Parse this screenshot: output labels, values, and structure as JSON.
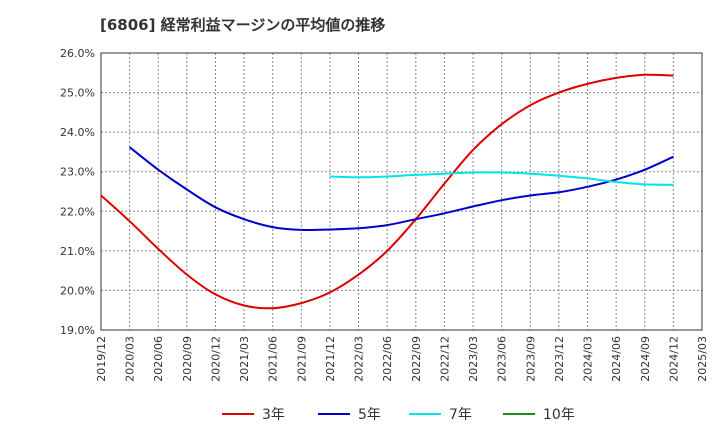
{
  "chart_data": {
    "type": "line",
    "title": "[6806]  経常利益マージンの平均値の推移",
    "xlabel": "",
    "ylabel": "",
    "ylim": [
      19.0,
      26.0
    ],
    "yticks": [
      "19.0%",
      "20.0%",
      "21.0%",
      "22.0%",
      "23.0%",
      "24.0%",
      "25.0%",
      "26.0%"
    ],
    "x_ticks": [
      "2019/12",
      "2020/03",
      "2020/06",
      "2020/09",
      "2020/12",
      "2021/03",
      "2021/06",
      "2021/09",
      "2021/12",
      "2022/03",
      "2022/06",
      "2022/09",
      "2022/12",
      "2023/03",
      "2023/06",
      "2023/09",
      "2023/12",
      "2024/03",
      "2024/06",
      "2024/09",
      "2024/12",
      "2025/03"
    ],
    "grid": true,
    "legend_position": "bottom",
    "series": [
      {
        "name": "3年",
        "color": "#dd0000",
        "points": [
          {
            "x": "2019/12",
            "y": 22.4
          },
          {
            "x": "2020/03",
            "y": 21.75
          },
          {
            "x": "2020/06",
            "y": 21.05
          },
          {
            "x": "2020/09",
            "y": 20.4
          },
          {
            "x": "2020/12",
            "y": 19.9
          },
          {
            "x": "2021/03",
            "y": 19.62
          },
          {
            "x": "2021/06",
            "y": 19.55
          },
          {
            "x": "2021/09",
            "y": 19.68
          },
          {
            "x": "2021/12",
            "y": 19.95
          },
          {
            "x": "2022/03",
            "y": 20.4
          },
          {
            "x": "2022/06",
            "y": 21.0
          },
          {
            "x": "2022/09",
            "y": 21.8
          },
          {
            "x": "2022/12",
            "y": 22.7
          },
          {
            "x": "2023/03",
            "y": 23.55
          },
          {
            "x": "2023/06",
            "y": 24.2
          },
          {
            "x": "2023/09",
            "y": 24.68
          },
          {
            "x": "2023/12",
            "y": 25.0
          },
          {
            "x": "2024/03",
            "y": 25.22
          },
          {
            "x": "2024/06",
            "y": 25.37
          },
          {
            "x": "2024/09",
            "y": 25.45
          },
          {
            "x": "2024/12",
            "y": 25.43
          }
        ]
      },
      {
        "name": "5年",
        "color": "#0000cc",
        "points": [
          {
            "x": "2020/03",
            "y": 23.62
          },
          {
            "x": "2020/06",
            "y": 23.05
          },
          {
            "x": "2020/09",
            "y": 22.55
          },
          {
            "x": "2020/12",
            "y": 22.1
          },
          {
            "x": "2021/03",
            "y": 21.8
          },
          {
            "x": "2021/06",
            "y": 21.6
          },
          {
            "x": "2021/09",
            "y": 21.53
          },
          {
            "x": "2021/12",
            "y": 21.54
          },
          {
            "x": "2022/03",
            "y": 21.57
          },
          {
            "x": "2022/06",
            "y": 21.65
          },
          {
            "x": "2022/09",
            "y": 21.8
          },
          {
            "x": "2022/12",
            "y": 21.95
          },
          {
            "x": "2023/03",
            "y": 22.12
          },
          {
            "x": "2023/06",
            "y": 22.28
          },
          {
            "x": "2023/09",
            "y": 22.4
          },
          {
            "x": "2023/12",
            "y": 22.48
          },
          {
            "x": "2024/03",
            "y": 22.62
          },
          {
            "x": "2024/06",
            "y": 22.8
          },
          {
            "x": "2024/09",
            "y": 23.05
          },
          {
            "x": "2024/12",
            "y": 23.38
          }
        ]
      },
      {
        "name": "7年",
        "color": "#00e5e5",
        "points": [
          {
            "x": "2021/12",
            "y": 22.88
          },
          {
            "x": "2022/03",
            "y": 22.86
          },
          {
            "x": "2022/06",
            "y": 22.88
          },
          {
            "x": "2022/09",
            "y": 22.92
          },
          {
            "x": "2022/12",
            "y": 22.95
          },
          {
            "x": "2023/03",
            "y": 22.98
          },
          {
            "x": "2023/06",
            "y": 22.98
          },
          {
            "x": "2023/09",
            "y": 22.95
          },
          {
            "x": "2023/12",
            "y": 22.9
          },
          {
            "x": "2024/03",
            "y": 22.83
          },
          {
            "x": "2024/06",
            "y": 22.74
          },
          {
            "x": "2024/09",
            "y": 22.68
          },
          {
            "x": "2024/12",
            "y": 22.67
          }
        ]
      },
      {
        "name": "10年",
        "color": "#228b22",
        "points": []
      }
    ]
  }
}
